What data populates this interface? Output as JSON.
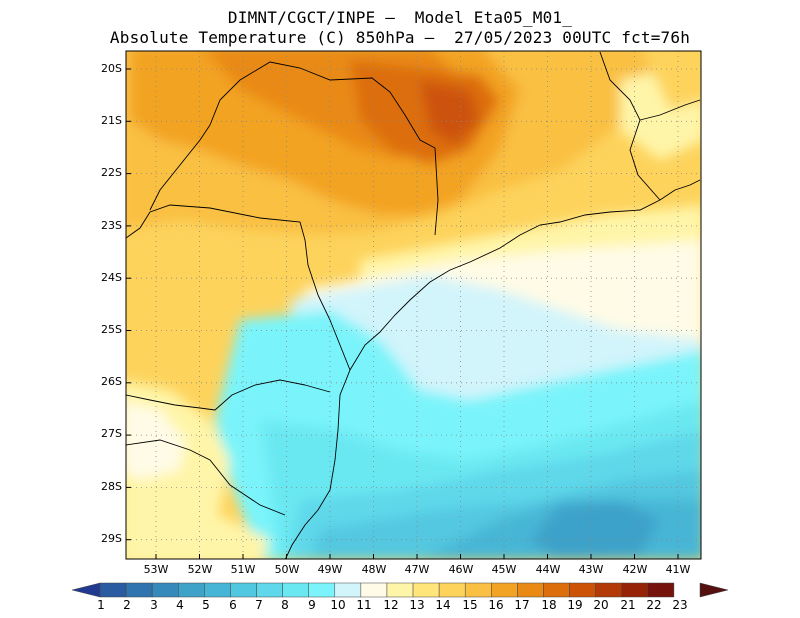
{
  "title": {
    "line1": "DIMNT/CGCT/INPE –  Model Eta05_M01_",
    "line2": "Absolute Temperature (C) 850hPa –  27/05/2023 00UTC fct=76h"
  },
  "map": {
    "lat_labels": [
      "20S",
      "21S",
      "22S",
      "23S",
      "24S",
      "25S",
      "26S",
      "27S",
      "28S",
      "29S"
    ],
    "lon_labels": [
      "53W",
      "52W",
      "51W",
      "50W",
      "49W",
      "48W",
      "47W",
      "46W",
      "45W",
      "44W",
      "43W",
      "42W",
      "41W"
    ],
    "grid": "dotted",
    "coastline_color": "#000000"
  },
  "colorbar": {
    "labels": [
      "1",
      "2",
      "3",
      "4",
      "5",
      "6",
      "7",
      "8",
      "9",
      "10",
      "11",
      "12",
      "13",
      "14",
      "15",
      "16",
      "17",
      "18",
      "19",
      "20",
      "21",
      "22",
      "23"
    ],
    "colors": [
      "#203a8f",
      "#2a5aa0",
      "#2f74ae",
      "#3689bb",
      "#3ea2c9",
      "#47b6d6",
      "#52c8e0",
      "#5ed8ea",
      "#6ae8f2",
      "#7af4fa",
      "#d2f4fb",
      "#fffbe6",
      "#fff5a8",
      "#ffe57a",
      "#fdd35c",
      "#f9c043",
      "#f3a324",
      "#e98a15",
      "#dd6e0c",
      "#cc5208",
      "#b33a07",
      "#962306",
      "#75120b",
      "#551010"
    ]
  }
}
